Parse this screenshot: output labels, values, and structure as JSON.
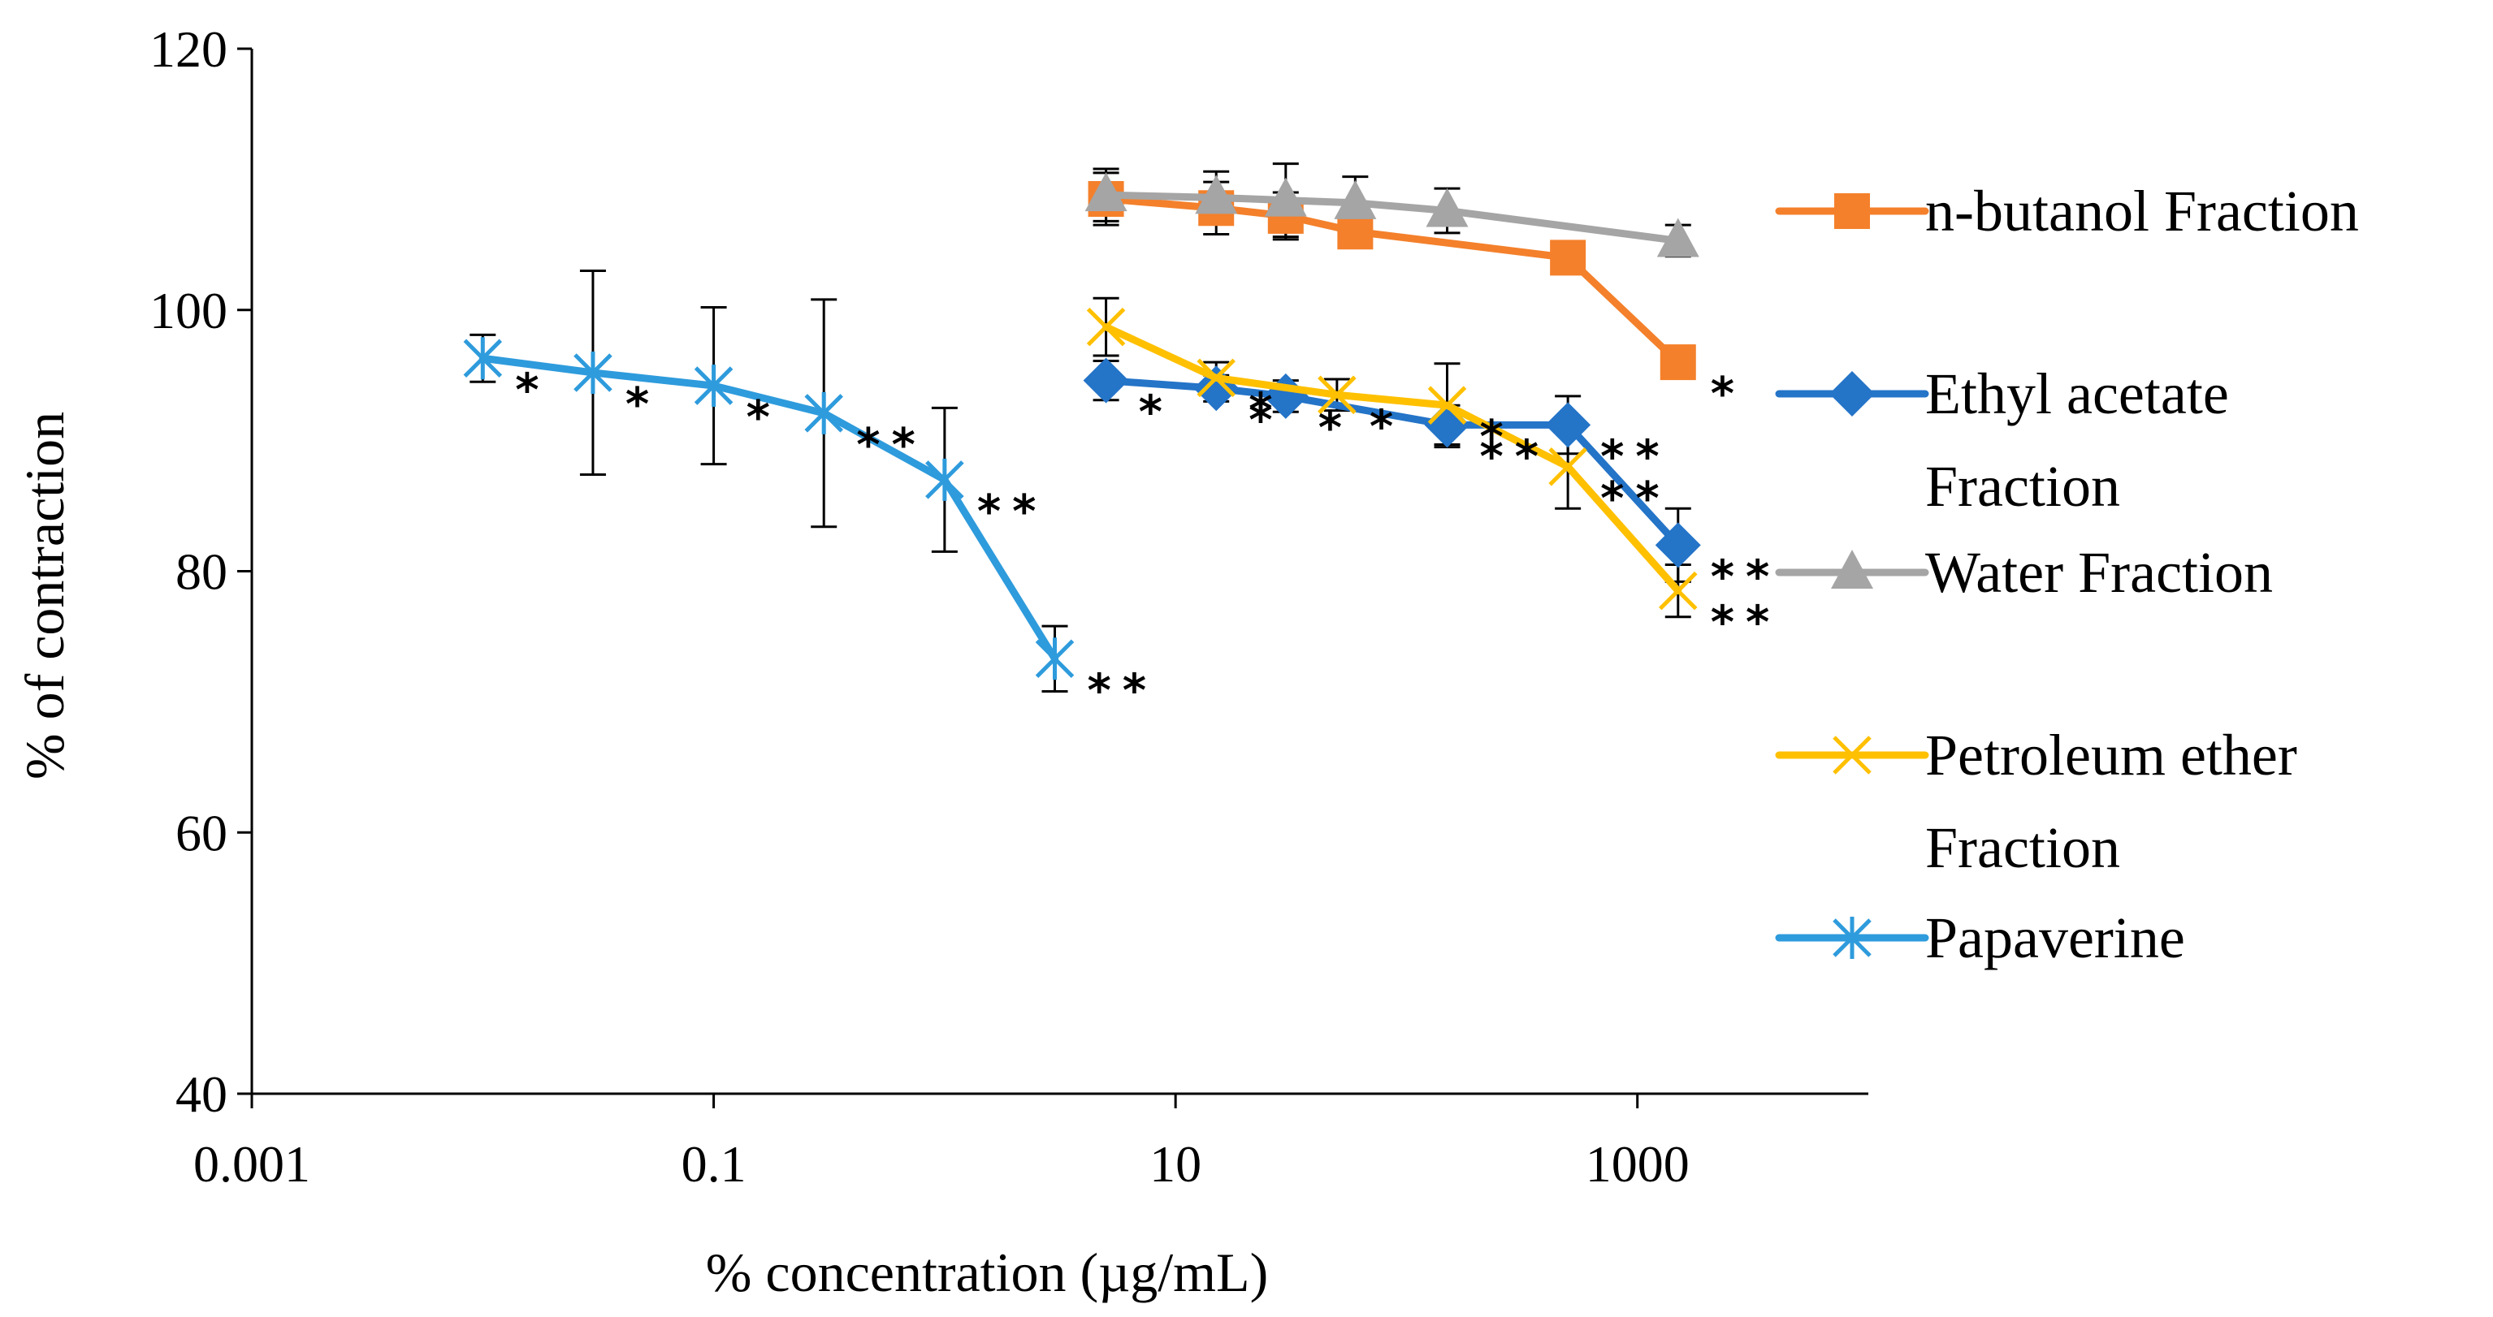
{
  "chart_data": {
    "type": "line",
    "title": "",
    "xlabel": "% concentration (µg/mL)",
    "ylabel": "% of contraction",
    "xscale": "log",
    "xlim": [
      0.001,
      10000
    ],
    "ylim": [
      40,
      120
    ],
    "x_ticks": [
      0.001,
      0.1,
      10,
      1000
    ],
    "x_tick_labels": [
      "0.001",
      "0.1",
      "10",
      "1000"
    ],
    "y_ticks": [
      40,
      60,
      80,
      100,
      120
    ],
    "y_tick_labels": [
      "40",
      "60",
      "80",
      "100",
      "120"
    ],
    "grid": false,
    "legend_position": "right",
    "series": [
      {
        "name": "n-butanol Fraction",
        "color": "#F4802B",
        "marker": "square",
        "x": [
          5,
          15,
          30,
          60,
          500,
          1500
        ],
        "y": [
          108.5,
          107.8,
          107.2,
          106,
          104,
          96
        ],
        "err": [
          2,
          2,
          1.8,
          0,
          0,
          0
        ],
        "sig": [
          "",
          "",
          "",
          "",
          "",
          "*"
        ]
      },
      {
        "name": "Water Fraction",
        "color": "#A5A5A5",
        "marker": "triangle",
        "x": [
          5,
          15,
          30,
          60,
          150,
          1500
        ],
        "y": [
          108.8,
          108.6,
          108.4,
          108.2,
          107.6,
          105.3
        ],
        "err": [
          2,
          2,
          2.8,
          2,
          1.7,
          1.2
        ],
        "sig": [
          "",
          "",
          "",
          "",
          "",
          ""
        ]
      },
      {
        "name": "Ethyl acetate Fraction",
        "color": "#2474C8",
        "marker": "diamond",
        "x": [
          5,
          15,
          30,
          150,
          500,
          1500
        ],
        "y": [
          94.6,
          94,
          93.4,
          91.2,
          91.2,
          82
        ],
        "err": [
          1.5,
          1,
          1.2,
          1.5,
          2.2,
          2.8
        ],
        "sig": [
          "*",
          "*",
          "*",
          "**",
          "**",
          "**"
        ]
      },
      {
        "name": "Petroleum ether Fraction",
        "color": "#FFC000",
        "marker": "x",
        "x": [
          5,
          15,
          50,
          150,
          500,
          1500
        ],
        "y": [
          98.7,
          94.8,
          93.5,
          92.7,
          88,
          78.5
        ],
        "err": [
          2.2,
          1.2,
          1.2,
          3.2,
          3.2,
          2
        ],
        "sig": [
          "",
          "*",
          "*",
          "*",
          "**",
          "**"
        ]
      },
      {
        "name": "Papaverine",
        "color": "#2E9BDC",
        "marker": "asterisk",
        "x": [
          0.01,
          0.03,
          0.1,
          0.3,
          1,
          3
        ],
        "y": [
          96.3,
          95.2,
          94.2,
          92.1,
          87,
          73.3
        ],
        "err": [
          1.8,
          7.8,
          6,
          8.7,
          5.5,
          2.5
        ],
        "sig": [
          "*",
          "*",
          "*",
          "**",
          "**",
          "**"
        ]
      }
    ],
    "legend_order": [
      "n-butanol Fraction",
      "Ethyl acetate Fraction",
      "Water Fraction",
      "Petroleum ether Fraction",
      "Papaverine"
    ]
  }
}
